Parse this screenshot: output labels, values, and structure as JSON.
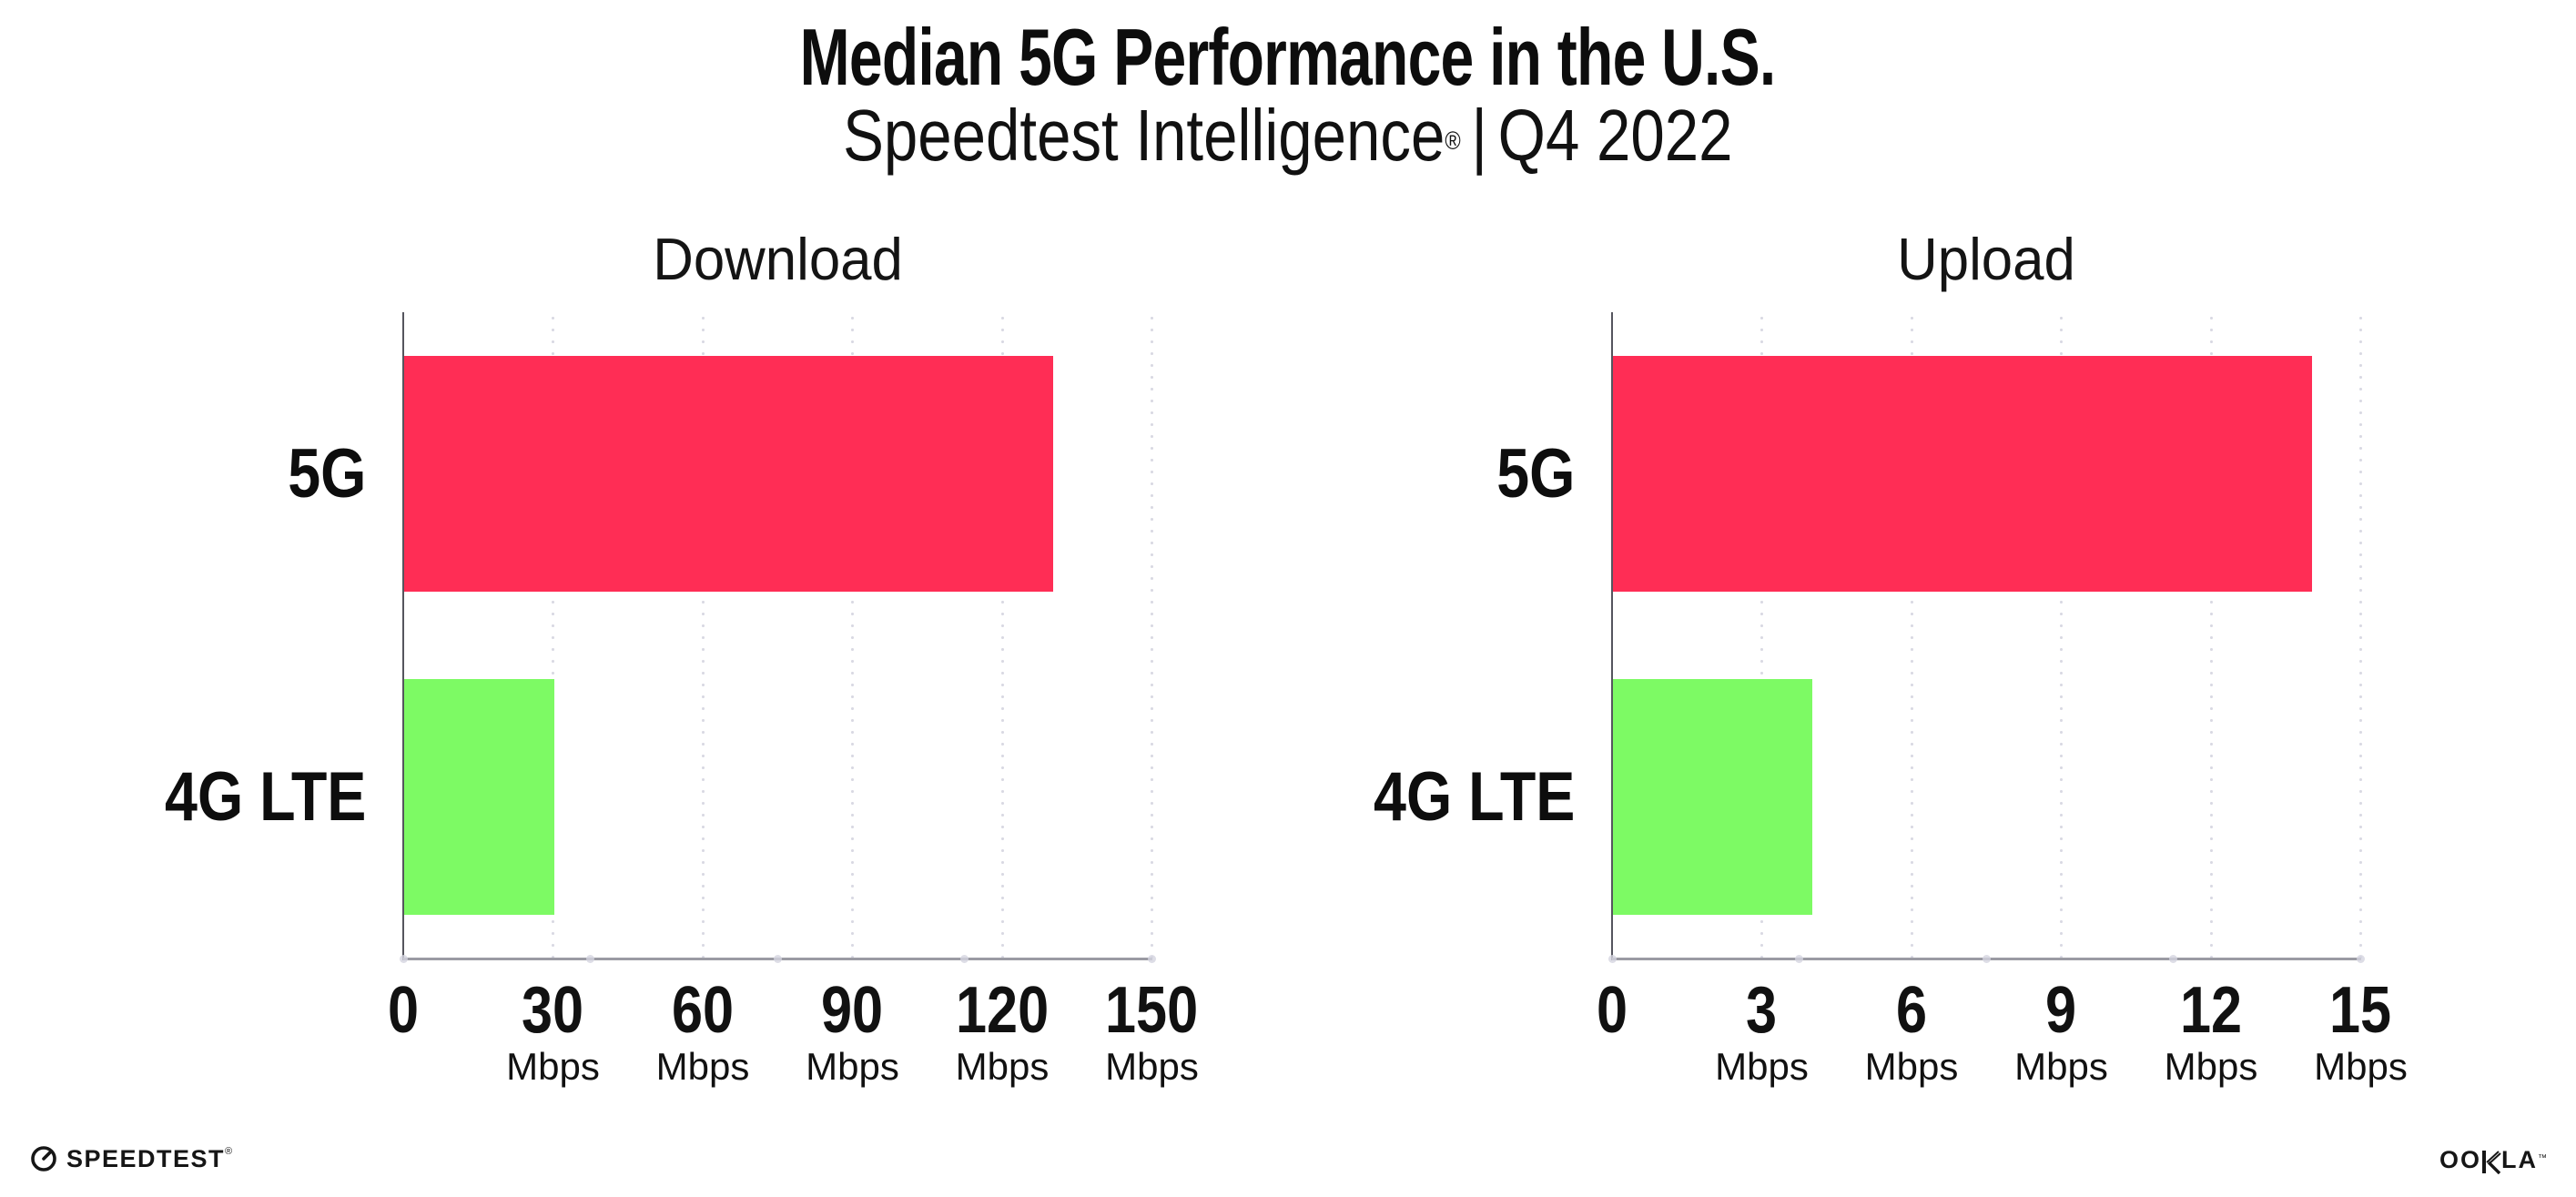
{
  "header": {
    "title": "Median 5G Performance in the U.S.",
    "subtitle_brand": "Speedtest Intelligence",
    "subtitle_reg": "®",
    "subtitle_separator": "|",
    "subtitle_period": "Q4 2022"
  },
  "chart_data": [
    {
      "type": "bar",
      "orientation": "horizontal",
      "title": "Download",
      "categories": [
        "5G",
        "4G LTE"
      ],
      "values": [
        130,
        30
      ],
      "unit": "Mbps",
      "xlabel": "",
      "ylabel": "",
      "xlim": [
        0,
        150
      ],
      "xticks": [
        0,
        30,
        60,
        90,
        120,
        150
      ],
      "tick_unit_label": "Mbps",
      "tick_unit_on_zero": false,
      "bar_colors": [
        "#ff2d55",
        "#7dfa64"
      ],
      "grid": "dotted-vertical",
      "legend": "none"
    },
    {
      "type": "bar",
      "orientation": "horizontal",
      "title": "Upload",
      "categories": [
        "5G",
        "4G LTE"
      ],
      "values": [
        14,
        4
      ],
      "unit": "Mbps",
      "xlabel": "",
      "ylabel": "",
      "xlim": [
        0,
        15
      ],
      "xticks": [
        0,
        3,
        6,
        9,
        12,
        15
      ],
      "tick_unit_label": "Mbps",
      "tick_unit_on_zero": false,
      "bar_colors": [
        "#ff2d55",
        "#7dfa64"
      ],
      "grid": "dotted-vertical",
      "legend": "none"
    }
  ],
  "colors": {
    "bar_5g": "#ff2d55",
    "bar_4g_lte": "#7dfa64",
    "y_axis": "#55555e",
    "x_axis": "#9b9ba3",
    "gridline_dots": "#d9d9e3",
    "text": "#0d0d0d",
    "background": "#ffffff"
  },
  "footer": {
    "speedtest_label": "SPEEDTEST",
    "speedtest_mark": "®",
    "ookla_label_left": "OO",
    "ookla_label_right": "LA",
    "ookla_k": "K",
    "ookla_mark": "™"
  }
}
